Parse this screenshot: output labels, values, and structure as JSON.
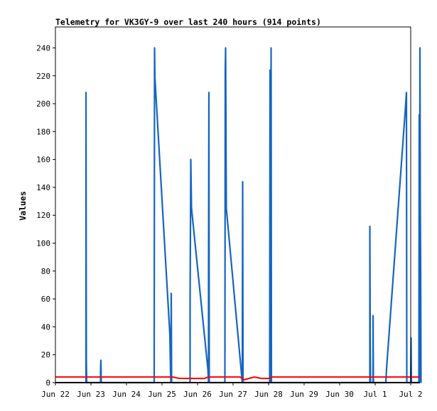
{
  "chart_data": {
    "type": "line",
    "title": "Telemetry for VK3GY-9 over last 240 hours (914 points)",
    "ylabel": "Values",
    "xlabel": "",
    "ylim": [
      0,
      255
    ],
    "yticks": [
      0,
      20,
      40,
      60,
      80,
      100,
      120,
      140,
      160,
      180,
      200,
      220,
      240
    ],
    "xlim_days": [
      0,
      10
    ],
    "xticks": [
      {
        "day": 0,
        "label": "Jun 22"
      },
      {
        "day": 1,
        "label": "Jun 23"
      },
      {
        "day": 2,
        "label": "Jun 24"
      },
      {
        "day": 3,
        "label": "Jun 25"
      },
      {
        "day": 4,
        "label": "Jun 26"
      },
      {
        "day": 5,
        "label": "Jun 27"
      },
      {
        "day": 6,
        "label": "Jun 28"
      },
      {
        "day": 7,
        "label": "Jun 29"
      },
      {
        "day": 8,
        "label": "Jun 30"
      },
      {
        "day": 9,
        "label": "Jul 1"
      },
      {
        "day": 10,
        "label": "Jul 2"
      }
    ],
    "grid": false,
    "legend": "none",
    "series": [
      {
        "color": "#1565c0",
        "kind": "spikes",
        "points": [
          [
            0.86,
            0
          ],
          [
            0.86,
            208
          ],
          [
            0.87,
            16
          ],
          [
            0.88,
            0
          ],
          [
            1.27,
            0
          ],
          [
            1.27,
            8
          ],
          [
            1.28,
            16
          ],
          [
            1.29,
            0
          ],
          [
            2.78,
            0
          ],
          [
            2.78,
            16
          ],
          [
            2.79,
            240
          ],
          [
            2.8,
            219
          ],
          [
            2.82,
            210
          ],
          [
            3.22,
            35
          ],
          [
            3.24,
            8
          ],
          [
            3.25,
            0
          ],
          [
            3.26,
            64
          ],
          [
            3.27,
            0
          ],
          [
            3.79,
            0
          ],
          [
            3.79,
            56
          ],
          [
            3.81,
            160
          ],
          [
            3.83,
            125
          ],
          [
            4.29,
            10
          ],
          [
            4.31,
            0
          ],
          [
            4.31,
            80
          ],
          [
            4.32,
            208
          ],
          [
            4.33,
            0
          ],
          [
            4.77,
            0
          ],
          [
            4.78,
            224
          ],
          [
            4.79,
            240
          ],
          [
            4.81,
            125
          ],
          [
            5.26,
            0
          ],
          [
            5.27,
            144
          ],
          [
            5.28,
            0
          ],
          [
            6.03,
            0
          ],
          [
            6.04,
            224
          ],
          [
            6.05,
            0
          ],
          [
            6.07,
            240
          ],
          [
            6.08,
            0
          ],
          [
            8.85,
            0
          ],
          [
            8.85,
            112
          ],
          [
            8.86,
            32
          ],
          [
            8.87,
            0
          ],
          [
            8.94,
            0
          ],
          [
            8.94,
            48
          ],
          [
            8.95,
            0
          ],
          [
            9.3,
            0
          ],
          [
            9.32,
            10
          ],
          [
            9.86,
            200
          ],
          [
            9.88,
            208
          ],
          [
            9.89,
            0
          ],
          [
            10.0,
            0
          ],
          [
            10.01,
            32
          ],
          [
            10.02,
            0
          ],
          [
            10.23,
            0
          ],
          [
            10.24,
            192
          ],
          [
            10.25,
            0
          ],
          [
            10.26,
            240
          ],
          [
            10.27,
            128
          ],
          [
            10.28,
            80
          ],
          [
            10.29,
            0
          ]
        ]
      },
      {
        "color": "#ff0000",
        "kind": "line",
        "points": [
          [
            0.0,
            4
          ],
          [
            3.3,
            4
          ],
          [
            3.5,
            3
          ],
          [
            4.2,
            3
          ],
          [
            4.3,
            4
          ],
          [
            5.2,
            4
          ],
          [
            5.3,
            2
          ],
          [
            5.45,
            3
          ],
          [
            5.6,
            4
          ],
          [
            5.8,
            3
          ],
          [
            6.0,
            3
          ],
          [
            6.1,
            4
          ],
          [
            10.25,
            4
          ]
        ]
      },
      {
        "color": "#000000",
        "kind": "line",
        "points": [
          [
            0.0,
            0
          ],
          [
            10.25,
            0
          ]
        ]
      }
    ]
  }
}
